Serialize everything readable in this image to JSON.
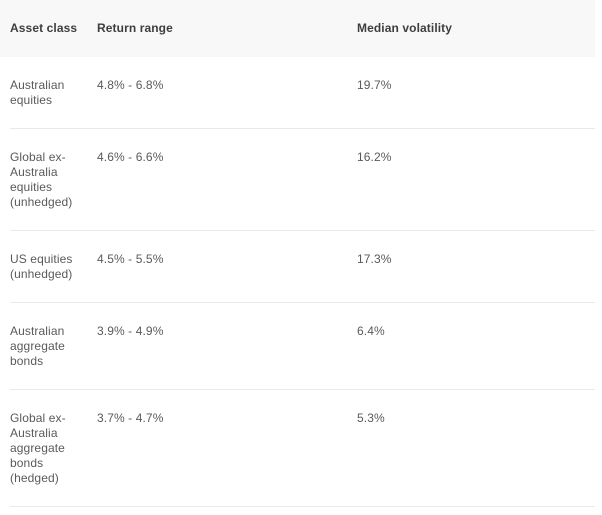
{
  "page": {
    "background": "#ffffff"
  },
  "table": {
    "header_background": "#f8f8f8",
    "divider_color": "#e9e9e9",
    "header_text_color": "#3e3e40",
    "body_text_color": "#5a5a5e",
    "columns": [
      {
        "key": "asset_class",
        "label": "Asset class"
      },
      {
        "key": "return_range",
        "label": "Return range"
      },
      {
        "key": "median_volatility",
        "label": "Median volatility"
      }
    ],
    "rows": [
      {
        "asset_class": "Australian equities",
        "return_range": "4.8% - 6.8%",
        "median_volatility": "19.7%"
      },
      {
        "asset_class": "Global ex-Australia equities (unhedged)",
        "return_range": "4.6% - 6.6%",
        "median_volatility": "16.2%"
      },
      {
        "asset_class": "US equities (unhedged)",
        "return_range": "4.5% - 5.5%",
        "median_volatility": "17.3%"
      },
      {
        "asset_class": "Australian aggregate bonds",
        "return_range": "3.9% - 4.9%",
        "median_volatility": "6.4%"
      },
      {
        "asset_class": "Global ex-Australia aggregate bonds (hedged)",
        "return_range": "3.7% - 4.7%",
        "median_volatility": "5.3%"
      }
    ]
  },
  "chart_data": {
    "type": "table",
    "columns": [
      "Asset class",
      "Return range",
      "Median volatility"
    ],
    "rows": [
      [
        "Australian equities",
        "4.8% - 6.8%",
        "19.7%"
      ],
      [
        "Global ex-Australia equities (unhedged)",
        "4.6% - 6.6%",
        "16.2%"
      ],
      [
        "US equities (unhedged)",
        "4.5% - 5.5%",
        "17.3%"
      ],
      [
        "Australian aggregate bonds",
        "3.9% - 4.9%",
        "6.4%"
      ],
      [
        "Global ex-Australia aggregate bonds (hedged)",
        "3.7% - 4.7%",
        "5.3%"
      ]
    ],
    "return_range_numeric_pct": [
      [
        4.8,
        6.8
      ],
      [
        4.6,
        6.6
      ],
      [
        4.5,
        5.5
      ],
      [
        3.9,
        4.9
      ],
      [
        3.7,
        4.7
      ]
    ],
    "median_volatility_numeric_pct": [
      19.7,
      16.2,
      17.3,
      6.4,
      5.3
    ]
  }
}
